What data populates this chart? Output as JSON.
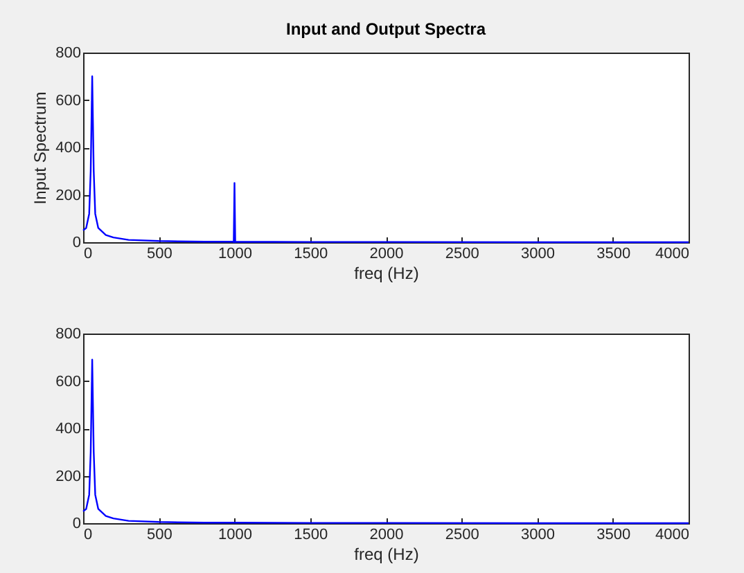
{
  "chart_data": [
    {
      "type": "line",
      "title": "Input and Output Spectra",
      "xlabel": "freq (Hz)",
      "ylabel": "Input Spectrum",
      "x": [
        0,
        20,
        40,
        50,
        60,
        70,
        80,
        100,
        150,
        200,
        300,
        500,
        800,
        990,
        995,
        1000,
        1005,
        1010,
        1500,
        2000,
        3000,
        4000
      ],
      "series": [
        {
          "color": "#0000ff",
          "values": [
            50,
            60,
            120,
            300,
            700,
            300,
            120,
            60,
            30,
            20,
            10,
            5,
            2,
            2,
            0,
            250,
            0,
            2,
            1,
            1,
            0,
            0
          ]
        }
      ],
      "xlim": [
        0,
        4000
      ],
      "ylim": [
        0,
        800
      ],
      "xticks": [
        0,
        500,
        1000,
        1500,
        2000,
        2500,
        3000,
        3500,
        4000
      ],
      "yticks": [
        0,
        200,
        400,
        600,
        800
      ],
      "grid": false
    },
    {
      "type": "line",
      "xlabel": "freq (Hz)",
      "x": [
        0,
        20,
        40,
        50,
        60,
        70,
        80,
        100,
        150,
        200,
        300,
        500,
        800,
        1000,
        1500,
        2000,
        3000,
        4000
      ],
      "series": [
        {
          "color": "#0000ff",
          "values": [
            50,
            60,
            120,
            300,
            690,
            300,
            120,
            60,
            30,
            20,
            10,
            5,
            2,
            2,
            1,
            1,
            0,
            0
          ]
        }
      ],
      "xlim": [
        0,
        4000
      ],
      "ylim": [
        0,
        800
      ],
      "xticks": [
        0,
        500,
        1000,
        1500,
        2000,
        2500,
        3000,
        3500,
        4000
      ],
      "yticks": [
        0,
        200,
        400,
        600,
        800
      ],
      "grid": false
    }
  ]
}
